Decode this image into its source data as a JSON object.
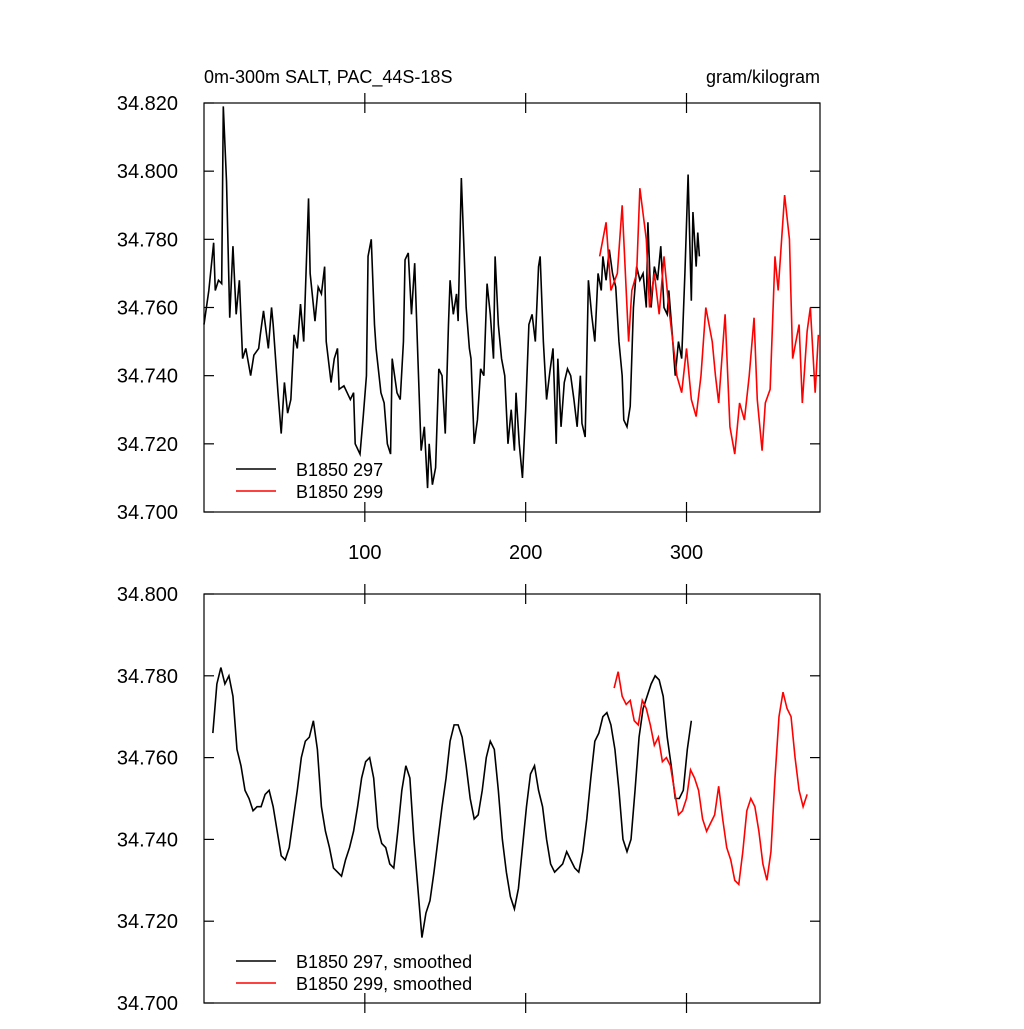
{
  "chart_data": [
    {
      "type": "line",
      "title": "0m-300m SALT, PAC_44S-18S",
      "units_label": "gram/kilogram",
      "xlim": [
        0,
        383
      ],
      "xticks": [
        100,
        200,
        300
      ],
      "xtick_labels": true,
      "ylim": [
        34.7,
        34.82
      ],
      "yticks": [
        {
          "value": 34.7,
          "label": "34.700"
        },
        {
          "value": 34.72,
          "label": "34.720"
        },
        {
          "value": 34.74,
          "label": "34.740"
        },
        {
          "value": 34.76,
          "label": "34.760"
        },
        {
          "value": 34.78,
          "label": "34.780"
        },
        {
          "value": 34.8,
          "label": "34.800"
        },
        {
          "value": 34.82,
          "label": "34.820"
        }
      ],
      "series": [
        {
          "name": "B1850 297",
          "color": "#000000",
          "x": [
            0,
            3,
            6,
            7,
            9,
            11,
            12,
            14,
            16,
            18,
            20,
            22,
            24,
            26,
            29,
            31,
            34,
            35,
            37,
            40,
            42,
            43,
            46,
            48,
            50,
            52,
            54,
            56,
            58,
            60,
            62,
            65,
            66,
            69,
            71,
            73,
            75,
            76,
            79,
            81,
            83,
            84,
            87,
            89,
            91,
            93,
            94,
            97,
            99,
            101,
            102,
            104,
            106,
            107,
            110,
            112,
            114,
            116,
            117,
            120,
            122,
            124,
            125,
            127,
            129,
            131,
            133,
            135,
            137,
            139,
            140,
            142,
            144,
            146,
            148,
            150,
            152,
            153,
            155,
            157,
            158,
            160,
            163,
            165,
            166,
            168,
            170,
            172,
            174,
            176,
            178,
            180,
            181,
            183,
            185,
            187,
            189,
            191,
            193,
            194,
            196,
            198,
            200,
            202,
            204,
            206,
            208,
            209,
            211,
            213,
            215,
            217,
            219,
            220,
            222,
            224,
            226,
            228,
            230,
            232,
            234,
            235,
            237,
            239,
            241,
            243,
            245,
            247,
            248,
            250,
            252,
            254,
            256,
            258,
            260,
            261,
            263,
            265,
            267,
            269,
            271,
            273,
            275,
            276,
            278,
            280,
            282,
            284,
            286,
            288,
            289,
            291,
            293,
            295,
            297,
            299,
            301,
            302,
            303,
            304,
            306,
            307,
            308
          ],
          "values": [
            34.755,
            34.765,
            34.779,
            34.765,
            34.768,
            34.767,
            34.819,
            34.797,
            34.757,
            34.778,
            34.758,
            34.768,
            34.745,
            34.748,
            34.74,
            34.746,
            34.748,
            34.752,
            34.759,
            34.748,
            34.76,
            34.755,
            34.735,
            34.723,
            34.738,
            34.729,
            34.733,
            34.752,
            34.748,
            34.761,
            34.75,
            34.792,
            34.77,
            34.756,
            34.766,
            34.764,
            34.772,
            34.75,
            34.738,
            34.745,
            34.748,
            34.736,
            34.737,
            34.735,
            34.733,
            34.735,
            34.72,
            34.717,
            34.728,
            34.74,
            34.775,
            34.78,
            34.755,
            34.748,
            34.735,
            34.732,
            34.72,
            34.717,
            34.745,
            34.735,
            34.733,
            34.75,
            34.774,
            34.776,
            34.758,
            34.773,
            34.745,
            34.718,
            34.725,
            34.707,
            34.72,
            34.708,
            34.713,
            34.742,
            34.74,
            34.723,
            34.755,
            34.768,
            34.758,
            34.764,
            34.756,
            34.798,
            34.76,
            34.748,
            34.745,
            34.72,
            34.727,
            34.742,
            34.74,
            34.767,
            34.758,
            34.745,
            34.775,
            34.755,
            34.745,
            34.74,
            34.72,
            34.73,
            34.718,
            34.735,
            34.72,
            34.71,
            34.73,
            34.755,
            34.758,
            34.75,
            34.772,
            34.775,
            34.75,
            34.733,
            34.741,
            34.748,
            34.72,
            34.745,
            34.725,
            34.738,
            34.742,
            34.74,
            34.733,
            34.725,
            34.74,
            34.726,
            34.722,
            34.768,
            34.758,
            34.75,
            34.77,
            34.765,
            34.775,
            34.768,
            34.777,
            34.77,
            34.766,
            34.75,
            34.74,
            34.727,
            34.725,
            34.731,
            34.76,
            34.772,
            34.768,
            34.77,
            34.76,
            34.785,
            34.76,
            34.772,
            34.768,
            34.778,
            34.76,
            34.758,
            34.765,
            34.753,
            34.74,
            34.75,
            34.745,
            34.77,
            34.799,
            34.78,
            34.762,
            34.788,
            34.772,
            34.782,
            34.775
          ]
        },
        {
          "name": "B1850 299",
          "color": "#ff0000",
          "x": [
            246,
            250,
            253,
            257,
            260,
            262,
            264,
            266,
            269,
            271,
            275,
            277,
            280,
            283,
            286,
            289,
            292,
            294,
            297,
            300,
            303,
            306,
            309,
            312,
            316,
            318,
            320,
            324,
            327,
            330,
            333,
            336,
            339,
            342,
            344,
            347,
            349,
            352,
            355,
            357,
            361,
            364,
            366,
            370,
            372,
            375,
            377,
            380,
            382
          ],
          "values": [
            34.775,
            34.785,
            34.765,
            34.77,
            34.79,
            34.77,
            34.75,
            34.765,
            34.77,
            34.795,
            34.78,
            34.76,
            34.77,
            34.758,
            34.775,
            34.76,
            34.748,
            34.74,
            34.735,
            34.748,
            34.733,
            34.728,
            34.74,
            34.76,
            34.75,
            34.74,
            34.732,
            34.758,
            34.725,
            34.717,
            34.732,
            34.727,
            34.74,
            34.757,
            34.733,
            34.718,
            34.732,
            34.736,
            34.775,
            34.765,
            34.793,
            34.78,
            34.745,
            34.755,
            34.732,
            34.753,
            34.76,
            34.735,
            34.752
          ]
        }
      ]
    },
    {
      "type": "line",
      "xlim": [
        0,
        383
      ],
      "xticks": [
        100,
        200,
        300
      ],
      "xtick_labels": false,
      "ylim": [
        34.7,
        34.8
      ],
      "yticks": [
        {
          "value": 34.7,
          "label": "34.700"
        },
        {
          "value": 34.72,
          "label": "34.720"
        },
        {
          "value": 34.74,
          "label": "34.740"
        },
        {
          "value": 34.76,
          "label": "34.760"
        },
        {
          "value": 34.78,
          "label": "34.780"
        },
        {
          "value": 34.8,
          "label": "34.800"
        }
      ],
      "series": [
        {
          "name": "B1850 297, smoothed",
          "color": "#000000",
          "x": [
            5.5,
            8,
            10.5,
            13,
            15.5,
            18,
            20.5,
            23,
            25.5,
            28,
            30.5,
            33,
            35.5,
            38,
            40.5,
            43,
            45.5,
            48,
            50.5,
            53,
            55.5,
            58,
            60.5,
            63,
            65.5,
            68,
            70.5,
            73,
            75.5,
            78,
            80.5,
            83,
            85.5,
            88,
            90.5,
            93,
            95.5,
            98,
            100.5,
            103,
            105.5,
            108,
            110.5,
            113,
            115.5,
            118,
            120.5,
            123,
            125.5,
            128,
            130.5,
            133,
            135.5,
            138,
            140.5,
            143,
            145.5,
            148,
            150.5,
            153,
            155.5,
            158,
            160.5,
            163,
            165.5,
            168,
            170.5,
            173,
            175.5,
            178,
            180.5,
            183,
            185.5,
            188,
            190.5,
            193,
            195.5,
            198,
            200.5,
            203,
            205.5,
            208,
            210.5,
            213,
            215.5,
            218,
            220.5,
            223,
            225.5,
            228,
            230.5,
            233,
            235.5,
            238,
            240.5,
            243,
            245.5,
            248,
            250.5,
            253,
            255.5,
            258,
            260.5,
            263,
            265.5,
            268,
            270.5,
            273,
            275.5,
            278,
            280.5,
            283,
            285.5,
            288,
            290.5,
            293,
            295.5,
            298,
            300.5,
            303
          ],
          "values": [
            34.766,
            34.778,
            34.782,
            34.778,
            34.78,
            34.775,
            34.762,
            34.758,
            34.752,
            34.75,
            34.747,
            34.748,
            34.748,
            34.751,
            34.752,
            34.748,
            34.742,
            34.736,
            34.735,
            34.738,
            34.745,
            34.752,
            34.76,
            34.764,
            34.765,
            34.769,
            34.762,
            34.748,
            34.742,
            34.738,
            34.733,
            34.732,
            34.731,
            34.735,
            34.738,
            34.742,
            34.748,
            34.755,
            34.759,
            34.76,
            34.755,
            34.743,
            34.739,
            34.738,
            34.734,
            34.733,
            34.742,
            34.752,
            34.758,
            34.755,
            34.74,
            34.728,
            34.716,
            34.722,
            34.725,
            34.732,
            34.74,
            34.748,
            34.755,
            34.764,
            34.768,
            34.768,
            34.765,
            34.758,
            34.75,
            34.745,
            34.746,
            34.752,
            34.76,
            34.764,
            34.762,
            34.752,
            34.74,
            34.732,
            34.726,
            34.723,
            34.728,
            34.738,
            34.748,
            34.756,
            34.758,
            34.752,
            34.748,
            34.74,
            34.734,
            34.732,
            34.733,
            34.734,
            34.737,
            34.735,
            34.733,
            34.732,
            34.737,
            34.745,
            34.755,
            34.764,
            34.766,
            34.77,
            34.771,
            34.768,
            34.762,
            34.752,
            34.74,
            34.737,
            34.74,
            34.752,
            34.765,
            34.772,
            34.775,
            34.778,
            34.78,
            34.779,
            34.775,
            34.765,
            34.758,
            34.75,
            34.75,
            34.752,
            34.762,
            34.769
          ]
        },
        {
          "name": "B1850 299, smoothed",
          "color": "#ff0000",
          "x": [
            255,
            257.5,
            260,
            262.5,
            265,
            267.5,
            270,
            272.5,
            275,
            277.5,
            280,
            282.5,
            285,
            287.5,
            290,
            292.5,
            295,
            297.5,
            300,
            302.5,
            305,
            307.5,
            310,
            312.5,
            315,
            317.5,
            320,
            322.5,
            325,
            327.5,
            330,
            332.5,
            335,
            337.5,
            340,
            342.5,
            345,
            347.5,
            350,
            352.5,
            355,
            357.5,
            360,
            362.5,
            365,
            367.5,
            370,
            372.5,
            375
          ],
          "values": [
            34.777,
            34.781,
            34.775,
            34.773,
            34.774,
            34.769,
            34.768,
            34.774,
            34.772,
            34.768,
            34.763,
            34.765,
            34.759,
            34.76,
            34.758,
            34.752,
            34.746,
            34.747,
            34.75,
            34.757,
            34.755,
            34.752,
            34.745,
            34.742,
            34.744,
            34.746,
            34.753,
            34.745,
            34.738,
            34.735,
            34.73,
            34.729,
            34.737,
            34.747,
            34.75,
            34.748,
            34.742,
            34.734,
            34.73,
            34.737,
            34.755,
            34.77,
            34.776,
            34.772,
            34.77,
            34.76,
            34.752,
            34.748,
            34.751
          ]
        }
      ]
    }
  ]
}
